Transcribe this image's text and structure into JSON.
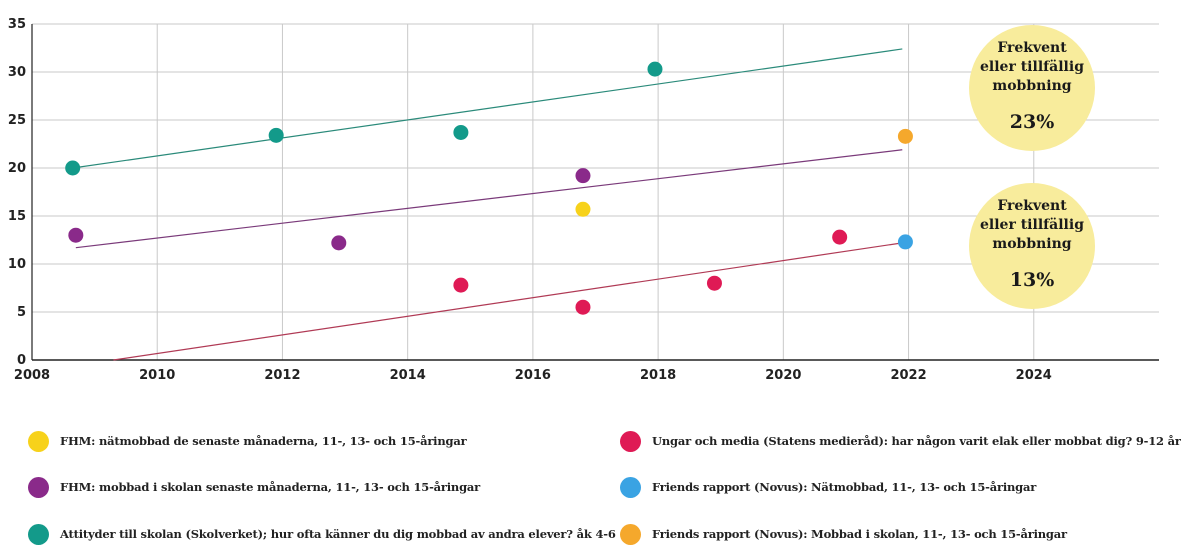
{
  "chart_data": {
    "type": "scatter",
    "xlim": [
      2008,
      2026
    ],
    "ylim": [
      0,
      35
    ],
    "x_ticks": [
      2008,
      2010,
      2012,
      2014,
      2016,
      2018,
      2020,
      2022,
      2024
    ],
    "y_ticks": [
      0,
      5,
      10,
      15,
      20,
      25,
      30,
      35
    ],
    "grid": true,
    "legend_position": "bottom",
    "series": [
      {
        "name": "FHM: nätmobbad de senaste månaderna, 11-, 13- och 15-åringar",
        "color": "#f7d21b",
        "points": [
          [
            2016.8,
            15.7
          ]
        ]
      },
      {
        "name": "FHM: mobbad i skolan senaste månaderna, 11-, 13- och 15-åringar",
        "color": "#8a2a8a",
        "points": [
          [
            2008.7,
            13.0
          ],
          [
            2012.9,
            12.2
          ],
          [
            2016.8,
            19.2
          ]
        ],
        "trend": [
          [
            2008.7,
            11.7
          ],
          [
            2021.9,
            21.9
          ]
        ]
      },
      {
        "name": "Attityder till skolan (Skolverket); hur ofta känner du dig mobbad av andra elever? åk 4-6",
        "color": "#139a8a",
        "points": [
          [
            2008.65,
            20.0
          ],
          [
            2011.9,
            23.4
          ],
          [
            2014.85,
            23.7
          ],
          [
            2017.95,
            30.3
          ]
        ],
        "trend": [
          [
            2008.65,
            20.0
          ],
          [
            2021.9,
            32.4
          ]
        ]
      },
      {
        "name": "Ungar och media (Statens medieråd): har någon varit elak eller mobbat dig? 9-12 år",
        "color": "#df1a55",
        "points": [
          [
            2014.85,
            7.8
          ],
          [
            2016.8,
            5.5
          ],
          [
            2018.9,
            8.0
          ],
          [
            2020.9,
            12.8
          ]
        ],
        "trend": [
          [
            2009.3,
            0.0
          ],
          [
            2021.9,
            12.2
          ]
        ]
      },
      {
        "name": "Friends rapport (Novus): Nätmobbad, 11-, 13- och 15-åringar",
        "color": "#3aa3e3",
        "points": [
          [
            2021.95,
            12.3
          ]
        ]
      },
      {
        "name": "Friends rapport (Novus): Mobbad i skolan, 11-, 13- och 15-åringar",
        "color": "#f5a82c",
        "points": [
          [
            2021.95,
            23.3
          ]
        ]
      }
    ],
    "trend_colors": [
      "#7a3a7a",
      "#2a8a7a",
      "#b03a55"
    ],
    "annotations": [
      {
        "lines": [
          "Frekvent",
          "eller tillfällig",
          "mobbning"
        ],
        "value": "23%",
        "fill": "#f8ec9c"
      },
      {
        "lines": [
          "Frekvent",
          "eller tillfällig",
          "mobbning"
        ],
        "value": "13%",
        "fill": "#f8ec9c"
      }
    ]
  }
}
